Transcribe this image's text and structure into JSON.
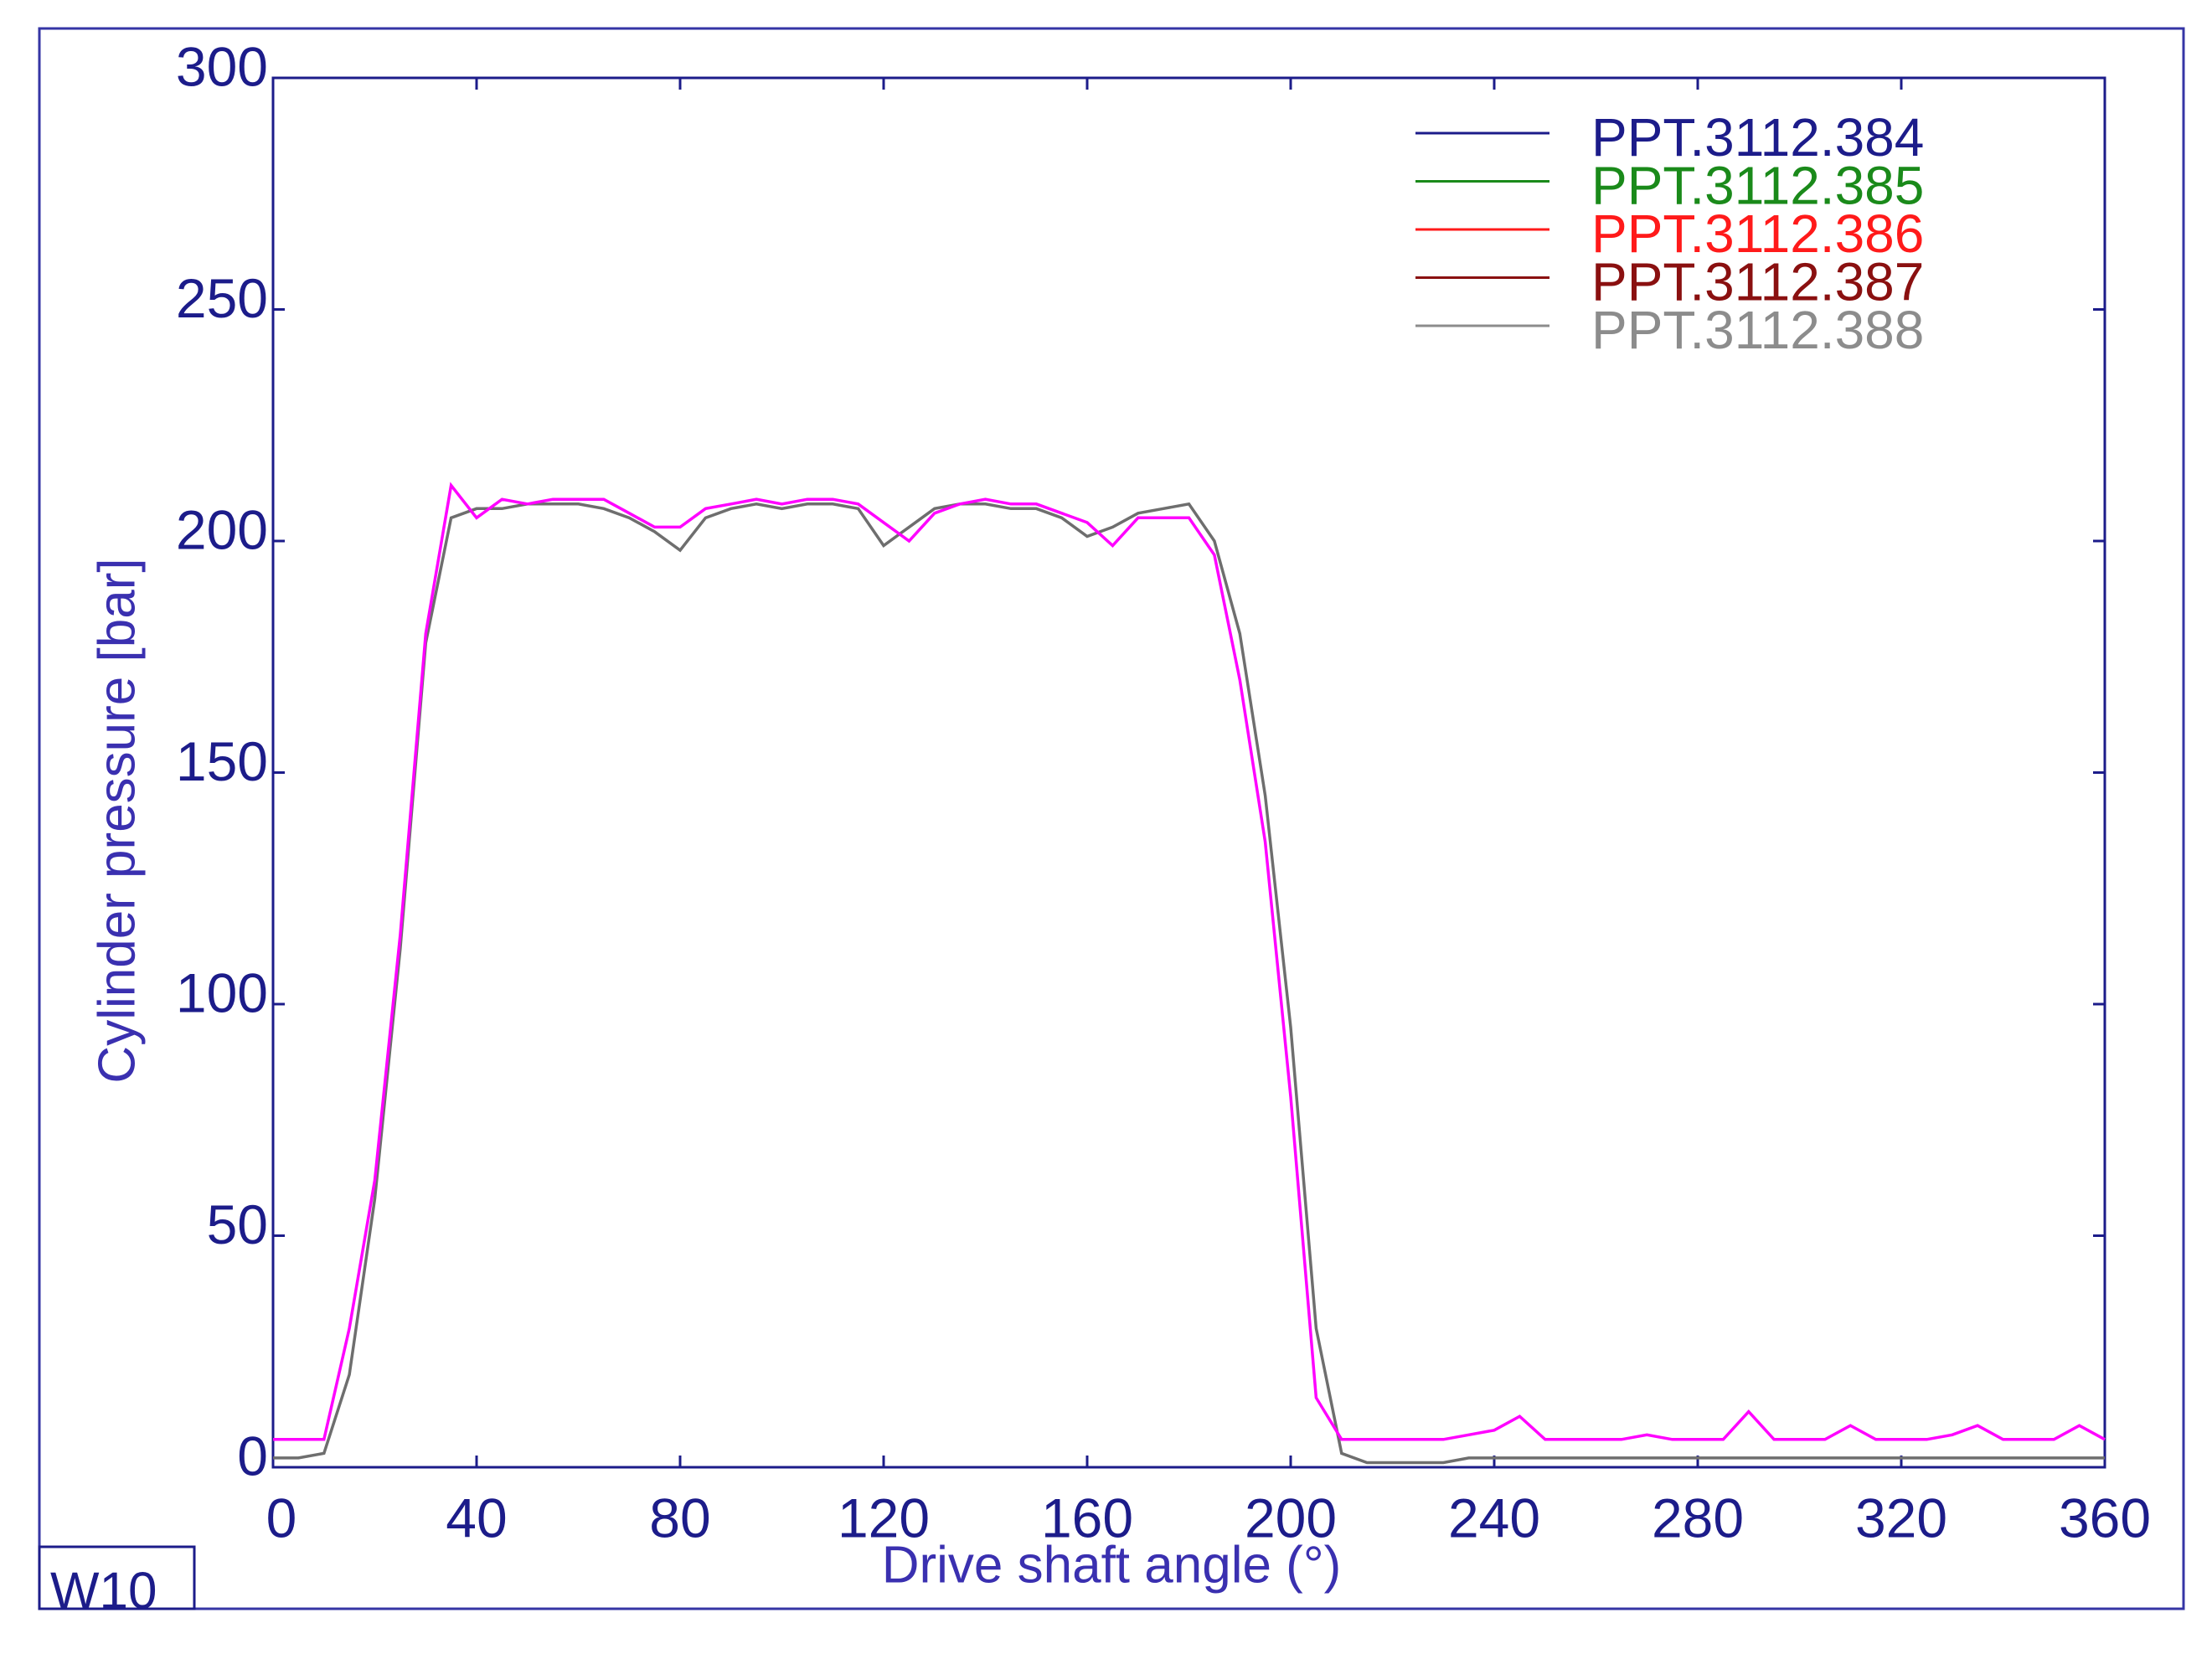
{
  "chart_data": {
    "type": "line",
    "x_label": "Drive shaft angle (°)",
    "y_label": "Cylinder pressure  [bar]",
    "corner_label": "W10",
    "x": [
      0,
      5,
      10,
      15,
      20,
      25,
      30,
      35,
      40,
      45,
      50,
      55,
      60,
      65,
      70,
      75,
      80,
      85,
      90,
      95,
      100,
      105,
      110,
      115,
      120,
      125,
      130,
      135,
      140,
      145,
      150,
      155,
      160,
      165,
      170,
      175,
      180,
      185,
      190,
      195,
      200,
      205,
      210,
      215,
      220,
      225,
      230,
      235,
      240,
      245,
      250,
      255,
      260,
      265,
      270,
      275,
      280,
      285,
      290,
      295,
      300,
      305,
      310,
      315,
      320,
      325,
      330,
      335,
      340,
      345,
      350,
      355,
      360
    ],
    "xlim": [
      0,
      360
    ],
    "xticks": [
      0,
      40,
      80,
      120,
      160,
      200,
      240,
      280,
      320,
      360
    ],
    "ylim": [
      0,
      300
    ],
    "yticks": [
      0,
      50,
      100,
      150,
      200,
      250,
      300
    ],
    "grid": false,
    "legend": "upper right",
    "series": [
      {
        "name": "PPT.3112.384",
        "color": "#1c1c8a"
      },
      {
        "name": "PPT.3112.385",
        "color": "#1a8a1a"
      },
      {
        "name": "PPT.3112.386",
        "color": "#ff1a1a",
        "line_color": "#ff00ff",
        "values": [
          6,
          6,
          6,
          30,
          62,
          115,
          180,
          212,
          205,
          209,
          208,
          209,
          209,
          209,
          206,
          203,
          203,
          207,
          208,
          209,
          208,
          209,
          209,
          208,
          204,
          200,
          206,
          208,
          209,
          208,
          208,
          206,
          204,
          199,
          205,
          205,
          205,
          197,
          170,
          135,
          80,
          15,
          6,
          6,
          6,
          6,
          6,
          7,
          8,
          11,
          6,
          6,
          6,
          6,
          7,
          6,
          6,
          6,
          12,
          6,
          6,
          6,
          9,
          6,
          6,
          6,
          7,
          9,
          6,
          6,
          6,
          9,
          6
        ]
      },
      {
        "name": "PPT.3112.387",
        "color": "#8a1010"
      },
      {
        "name": "PPT.3112.388",
        "color": "#8c8c8c",
        "line_color": "#6e6e6e",
        "values": [
          2,
          2,
          3,
          20,
          58,
          112,
          178,
          205,
          207,
          207,
          208,
          208,
          208,
          207,
          205,
          202,
          198,
          205,
          207,
          208,
          207,
          208,
          208,
          207,
          199,
          203,
          207,
          208,
          208,
          207,
          207,
          205,
          201,
          203,
          206,
          207,
          208,
          200,
          180,
          145,
          95,
          30,
          3,
          1,
          1,
          1,
          1,
          2,
          2,
          2,
          2,
          2,
          2,
          2,
          2,
          2,
          2,
          2,
          2,
          2,
          2,
          2,
          2,
          2,
          2,
          2,
          2,
          2,
          2,
          2,
          2,
          2,
          2
        ]
      }
    ]
  }
}
